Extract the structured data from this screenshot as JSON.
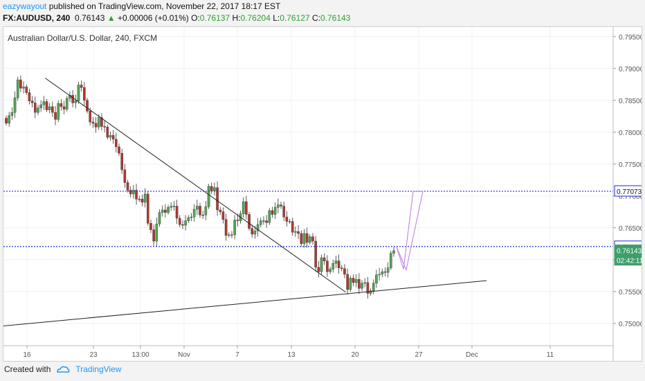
{
  "header": {
    "username": "eazywayout",
    "published_text": " published on TradingView.com, November 22, 2017 18:17 EST",
    "symbol": "FX:AUDUSD, 240",
    "last": "0.76143",
    "change_arrow": "▲",
    "change": "+0.00006 (+0.01%)",
    "o_label": "O:",
    "o_value": "0.76137",
    "h_label": "H:",
    "h_value": "0.76204",
    "l_label": "L:",
    "l_value": "0.76127",
    "c_label": "C:",
    "c_value": "0.76143"
  },
  "footer": {
    "created_with": "Created with",
    "brand": "TradingView"
  },
  "colors": {
    "up": "#53a653",
    "down": "#b03a2e",
    "level": "#1f2ad4",
    "projection": "#c58be8",
    "trendline": "#222222"
  },
  "chart_data": {
    "type": "candlestick",
    "title": "Australian Dollar/U.S. Dollar, 240, FXCM",
    "ylim": [
      0.7465,
      0.7965
    ],
    "y_ticks": [
      "0.79500",
      "0.79000",
      "0.78500",
      "0.78000",
      "0.77500",
      "0.77000",
      "0.76500",
      "0.76000",
      "0.75500",
      "0.75000"
    ],
    "x_ticks": [
      "16",
      "23",
      "13:00",
      "Nov",
      "7",
      "13",
      "20",
      "27",
      "Dec",
      "11"
    ],
    "price_labels": [
      {
        "text": "0.77073",
        "value": 0.77073,
        "style": "level"
      },
      {
        "text": "0.76206",
        "value": 0.76206,
        "style": "level"
      },
      {
        "text": "0.76143",
        "value": 0.76143,
        "style": "last"
      },
      {
        "text": "02:42:11",
        "value": 0.7599,
        "style": "timer"
      }
    ],
    "horizontal_levels": [
      0.77073,
      0.76206
    ],
    "descending_trendline": {
      "from": {
        "date": "2017-10-19",
        "price": 0.7885
      },
      "to": {
        "date": "2017-11-28",
        "price": 0.7549
      }
    },
    "ascending_trendline": {
      "from": {
        "date": "2017-10-13",
        "price": 0.7496
      },
      "to": {
        "date": "2017-12-17",
        "price": 0.7567
      }
    },
    "projection_path": [
      {
        "date": "2017-11-23",
        "price": 0.762
      },
      {
        "date": "2017-11-24",
        "price": 0.7585
      },
      {
        "date": "2017-11-25",
        "price": 0.7707
      },
      {
        "date": "2017-11-26",
        "price": 0.7707
      },
      {
        "date": "2017-11-24",
        "price": 0.7584
      },
      {
        "date": "2017-11-23",
        "price": 0.762
      }
    ],
    "closes": [
      0.7814,
      0.7826,
      0.7831,
      0.7854,
      0.7882,
      0.7869,
      0.7871,
      0.7862,
      0.7849,
      0.7846,
      0.7831,
      0.7838,
      0.7843,
      0.7848,
      0.7835,
      0.784,
      0.7831,
      0.782,
      0.7845,
      0.784,
      0.7836,
      0.7853,
      0.7858,
      0.7846,
      0.7849,
      0.7874,
      0.787,
      0.785,
      0.7833,
      0.7816,
      0.7814,
      0.7808,
      0.7823,
      0.7809,
      0.7808,
      0.7792,
      0.7795,
      0.7789,
      0.7777,
      0.7767,
      0.7741,
      0.7721,
      0.7709,
      0.7703,
      0.7709,
      0.7695,
      0.7695,
      0.769,
      0.7703,
      0.7657,
      0.7647,
      0.7629,
      0.7656,
      0.7674,
      0.7678,
      0.7674,
      0.7682,
      0.7684,
      0.7684,
      0.7665,
      0.7655,
      0.7654,
      0.7661,
      0.7666,
      0.7667,
      0.7679,
      0.7684,
      0.767,
      0.767,
      0.7683,
      0.7715,
      0.7708,
      0.7713,
      0.7678,
      0.7675,
      0.7663,
      0.7638,
      0.7639,
      0.7639,
      0.7662,
      0.7661,
      0.7672,
      0.7691,
      0.7671,
      0.7649,
      0.764,
      0.7645,
      0.7655,
      0.7661,
      0.7661,
      0.7658,
      0.7677,
      0.7671,
      0.7682,
      0.7686,
      0.7684,
      0.7667,
      0.766,
      0.766,
      0.7643,
      0.7644,
      0.7641,
      0.7625,
      0.7641,
      0.7627,
      0.7636,
      0.7629,
      0.7588,
      0.7581,
      0.7603,
      0.7598,
      0.7581,
      0.7585,
      0.7594,
      0.7598,
      0.7587,
      0.7586,
      0.7577,
      0.7553,
      0.7571,
      0.7564,
      0.7569,
      0.7555,
      0.7563,
      0.7564,
      0.7547,
      0.7551,
      0.7563,
      0.7576,
      0.7577,
      0.7581,
      0.758,
      0.7587,
      0.761,
      0.7614
    ]
  }
}
